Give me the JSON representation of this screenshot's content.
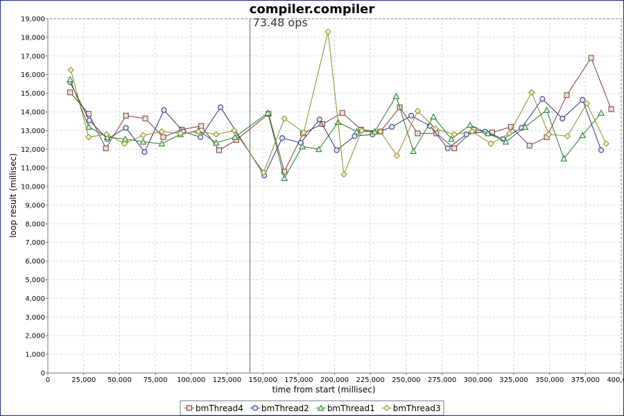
{
  "chart_data": {
    "type": "line",
    "title": "compiler.compiler",
    "xlabel": "time from start (millisec)",
    "ylabel": "loop result (millisec)",
    "xlim": [
      0,
      400000
    ],
    "ylim": [
      0,
      19000
    ],
    "xticks": [
      0,
      25000,
      50000,
      75000,
      100000,
      125000,
      150000,
      175000,
      200000,
      225000,
      250000,
      275000,
      300000,
      325000,
      350000,
      375000,
      400000
    ],
    "xtick_labels": [
      "0",
      "25,000",
      "50,000",
      "75,000",
      "100,000",
      "125,000",
      "150,000",
      "175,000",
      "200,000",
      "225,000",
      "250,000",
      "275,000",
      "300,000",
      "325,000",
      "350,000",
      "375,000",
      "400,000"
    ],
    "yticks": [
      0,
      1000,
      2000,
      3000,
      4000,
      5000,
      6000,
      7000,
      8000,
      9000,
      10000,
      11000,
      12000,
      13000,
      14000,
      15000,
      16000,
      17000,
      18000,
      19000
    ],
    "ytick_labels": [
      "0",
      "1,000",
      "2,000",
      "3,000",
      "4,000",
      "5,000",
      "6,000",
      "7,000",
      "8,000",
      "9,000",
      "10,000",
      "11,000",
      "12,000",
      "13,000",
      "14,000",
      "15,000",
      "16,000",
      "17,000",
      "18,000",
      "19,000"
    ],
    "grid": true,
    "legend_position": "bottom-center",
    "annotation": {
      "text": "73.48 ops",
      "x": 141000
    },
    "series": [
      {
        "name": "bmThread4",
        "marker": "square",
        "color": "#7a3a3a",
        "x": [
          15500,
          28500,
          40500,
          54500,
          68000,
          80500,
          93500,
          107000,
          119500,
          131500,
          154000,
          165000,
          178000,
          191500,
          205500,
          218500,
          232000,
          245500,
          258000,
          271000,
          283500,
          297000,
          310000,
          323000,
          336000,
          348000,
          362000,
          379000,
          393000
        ],
        "y": [
          15050,
          13900,
          12050,
          13800,
          13650,
          12650,
          13050,
          13250,
          11950,
          12500,
          13900,
          10800,
          12850,
          13350,
          13950,
          13050,
          12950,
          14250,
          12850,
          12850,
          12050,
          13050,
          12900,
          13200,
          12200,
          12650,
          14900,
          16900,
          14150
        ]
      },
      {
        "name": "bmThread2",
        "marker": "circle",
        "color": "#2b2f7a",
        "x": [
          15500,
          29000,
          41500,
          54500,
          67500,
          81000,
          94500,
          106500,
          120500,
          151000,
          163500,
          176500,
          189500,
          201500,
          214000,
          226500,
          240000,
          253500,
          266500,
          279000,
          292000,
          305000,
          317500,
          330500,
          345000,
          359000,
          373000,
          386000
        ],
        "y": [
          15600,
          13550,
          12550,
          13150,
          11850,
          14100,
          12950,
          12650,
          14250,
          10600,
          12600,
          12350,
          13600,
          11950,
          12700,
          12800,
          13200,
          13800,
          13250,
          12050,
          12800,
          12950,
          12550,
          13150,
          14700,
          13650,
          14650,
          11950
        ]
      },
      {
        "name": "bmThread1",
        "marker": "triangle",
        "color": "#1d7a2e",
        "x": [
          15500,
          28500,
          41500,
          54000,
          66500,
          79500,
          92500,
          105000,
          117500,
          130500,
          153500,
          165000,
          177500,
          189000,
          202500,
          215500,
          228000,
          243000,
          255000,
          269000,
          281500,
          294500,
          307000,
          319500,
          333000,
          348000,
          360000,
          373000,
          386000
        ],
        "y": [
          15750,
          13200,
          12650,
          12550,
          12400,
          12300,
          12800,
          13000,
          12350,
          12650,
          13950,
          10450,
          12150,
          12000,
          13450,
          12950,
          12950,
          14850,
          11900,
          13750,
          12550,
          13300,
          12850,
          12400,
          13200,
          14100,
          11500,
          12750,
          13950
        ]
      },
      {
        "name": "bmThread3",
        "marker": "diamond",
        "color": "#8a8a22",
        "x": [
          16000,
          28500,
          41000,
          53500,
          66500,
          79500,
          92500,
          105000,
          117500,
          130000,
          150500,
          165000,
          178500,
          195500,
          206500,
          219000,
          232000,
          243500,
          258000,
          270500,
          283500,
          296000,
          309000,
          322000,
          337500,
          349500,
          362500,
          376000,
          389500
        ],
        "y": [
          16250,
          12650,
          12800,
          12300,
          12750,
          12950,
          12850,
          12950,
          12800,
          13000,
          10750,
          13650,
          12900,
          18300,
          10650,
          13000,
          12950,
          11650,
          14050,
          13100,
          12800,
          12950,
          12300,
          12850,
          15050,
          12800,
          12700,
          14450,
          12300
        ]
      }
    ]
  }
}
